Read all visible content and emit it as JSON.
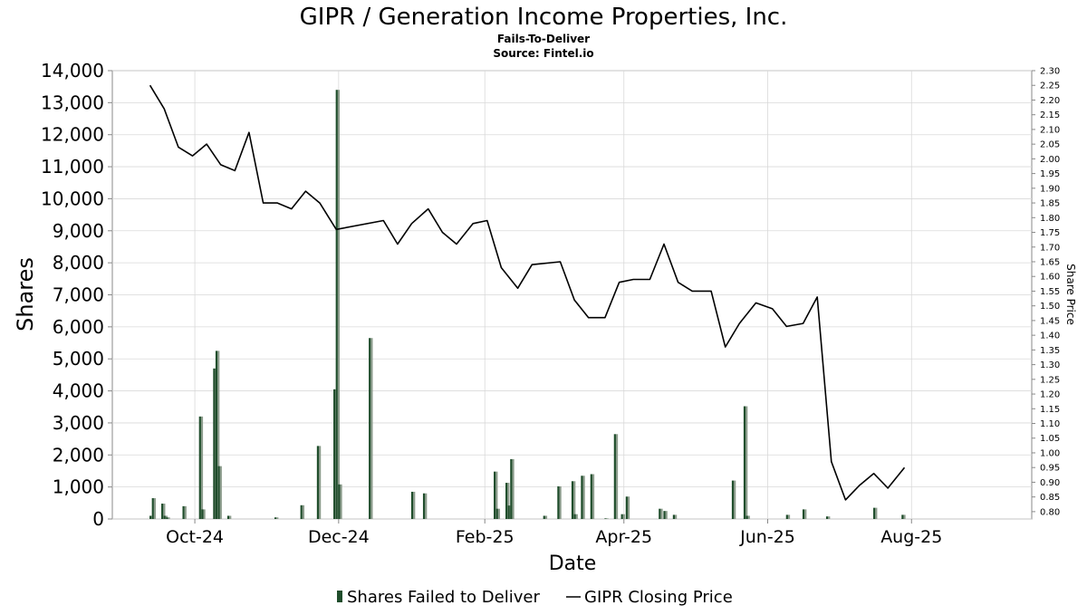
{
  "title": "GIPR / Generation Income Properties, Inc.",
  "subtitle": "Fails-To-Deliver",
  "source": "Source: Fintel.io",
  "colors": {
    "fail_bar": "#1f4d2b",
    "fail_bar_shadow": "#8c9c8c",
    "price_line": "#000000",
    "grid": "#d9d9d9",
    "axis": "#888888"
  },
  "chart_data": {
    "type": "bar",
    "xlabel": "Date",
    "ylabel": "Shares",
    "y2label": "Share Price",
    "ylim": [
      0,
      14000
    ],
    "y2lim": [
      0.775,
      2.3
    ],
    "xlim": [
      "2024-08-27",
      "2025-09-21"
    ],
    "yticks": [
      "0",
      "1,000",
      "2,000",
      "3,000",
      "4,000",
      "5,000",
      "6,000",
      "7,000",
      "8,000",
      "9,000",
      "10,000",
      "11,000",
      "12,000",
      "13,000",
      "14,000"
    ],
    "y2ticks": [
      "0.80",
      "0.85",
      "0.90",
      "0.95",
      "1.00",
      "1.05",
      "1.10",
      "1.15",
      "1.20",
      "1.25",
      "1.30",
      "1.35",
      "1.40",
      "1.45",
      "1.50",
      "1.55",
      "1.60",
      "1.65",
      "1.70",
      "1.75",
      "1.80",
      "1.85",
      "1.90",
      "1.95",
      "2.00",
      "2.05",
      "2.10",
      "2.15",
      "2.20",
      "2.25",
      "2.30"
    ],
    "xticks": [
      {
        "date": "2024-10-01",
        "label": "Oct-24"
      },
      {
        "date": "2024-12-01",
        "label": "Dec-24"
      },
      {
        "date": "2025-02-01",
        "label": "Feb-25"
      },
      {
        "date": "2025-04-01",
        "label": "Apr-25"
      },
      {
        "date": "2025-06-01",
        "label": "Jun-25"
      },
      {
        "date": "2025-08-01",
        "label": "Aug-25"
      }
    ],
    "grid": true,
    "legend_position": "bottom",
    "series": [
      {
        "name": "Shares Failed to Deliver",
        "type": "bar",
        "points": [
          {
            "date": "2024-09-12",
            "value": 100
          },
          {
            "date": "2024-09-13",
            "value": 650
          },
          {
            "date": "2024-09-17",
            "value": 480
          },
          {
            "date": "2024-09-18",
            "value": 100
          },
          {
            "date": "2024-09-19",
            "value": 50
          },
          {
            "date": "2024-09-26",
            "value": 400
          },
          {
            "date": "2024-10-03",
            "value": 3200
          },
          {
            "date": "2024-10-04",
            "value": 300
          },
          {
            "date": "2024-10-09",
            "value": 4700
          },
          {
            "date": "2024-10-10",
            "value": 5250
          },
          {
            "date": "2024-10-11",
            "value": 1650
          },
          {
            "date": "2024-10-15",
            "value": 100
          },
          {
            "date": "2024-11-04",
            "value": 50
          },
          {
            "date": "2024-11-15",
            "value": 430
          },
          {
            "date": "2024-11-22",
            "value": 2280
          },
          {
            "date": "2024-11-29",
            "value": 4050
          },
          {
            "date": "2024-11-30",
            "value": 13400
          },
          {
            "date": "2024-12-01",
            "value": 1080
          },
          {
            "date": "2024-12-14",
            "value": 5650
          },
          {
            "date": "2025-01-01",
            "value": 850
          },
          {
            "date": "2025-01-06",
            "value": 800
          },
          {
            "date": "2025-02-05",
            "value": 1480
          },
          {
            "date": "2025-02-06",
            "value": 320
          },
          {
            "date": "2025-02-10",
            "value": 1130
          },
          {
            "date": "2025-02-11",
            "value": 420
          },
          {
            "date": "2025-02-12",
            "value": 1870
          },
          {
            "date": "2025-02-26",
            "value": 100
          },
          {
            "date": "2025-03-04",
            "value": 1020
          },
          {
            "date": "2025-03-10",
            "value": 1180
          },
          {
            "date": "2025-03-11",
            "value": 150
          },
          {
            "date": "2025-03-14",
            "value": 1350
          },
          {
            "date": "2025-03-18",
            "value": 1400
          },
          {
            "date": "2025-03-24",
            "value": 20
          },
          {
            "date": "2025-03-28",
            "value": 2650
          },
          {
            "date": "2025-03-31",
            "value": 150
          },
          {
            "date": "2025-04-02",
            "value": 700
          },
          {
            "date": "2025-04-16",
            "value": 320
          },
          {
            "date": "2025-04-18",
            "value": 250
          },
          {
            "date": "2025-04-22",
            "value": 130
          },
          {
            "date": "2025-05-17",
            "value": 1200
          },
          {
            "date": "2025-05-22",
            "value": 3520
          },
          {
            "date": "2025-05-23",
            "value": 100
          },
          {
            "date": "2025-06-09",
            "value": 130
          },
          {
            "date": "2025-06-16",
            "value": 300
          },
          {
            "date": "2025-06-26",
            "value": 80
          },
          {
            "date": "2025-07-16",
            "value": 350
          },
          {
            "date": "2025-07-28",
            "value": 130
          }
        ]
      },
      {
        "name": "GIPR Closing Price",
        "type": "line",
        "points": [
          {
            "date": "2024-09-12",
            "value": 2.25
          },
          {
            "date": "2024-09-18",
            "value": 2.17
          },
          {
            "date": "2024-09-24",
            "value": 2.04
          },
          {
            "date": "2024-09-30",
            "value": 2.01
          },
          {
            "date": "2024-10-06",
            "value": 2.05
          },
          {
            "date": "2024-10-12",
            "value": 1.98
          },
          {
            "date": "2024-10-18",
            "value": 1.96
          },
          {
            "date": "2024-10-24",
            "value": 2.09
          },
          {
            "date": "2024-10-30",
            "value": 1.85
          },
          {
            "date": "2024-11-05",
            "value": 1.85
          },
          {
            "date": "2024-11-11",
            "value": 1.83
          },
          {
            "date": "2024-11-17",
            "value": 1.89
          },
          {
            "date": "2024-11-23",
            "value": 1.85
          },
          {
            "date": "2024-11-30",
            "value": 1.76
          },
          {
            "date": "2024-12-20",
            "value": 1.79
          },
          {
            "date": "2024-12-26",
            "value": 1.71
          },
          {
            "date": "2025-01-01",
            "value": 1.78
          },
          {
            "date": "2025-01-08",
            "value": 1.83
          },
          {
            "date": "2025-01-14",
            "value": 1.75
          },
          {
            "date": "2025-01-20",
            "value": 1.71
          },
          {
            "date": "2025-01-27",
            "value": 1.78
          },
          {
            "date": "2025-02-02",
            "value": 1.79
          },
          {
            "date": "2025-02-08",
            "value": 1.63
          },
          {
            "date": "2025-02-15",
            "value": 1.56
          },
          {
            "date": "2025-02-21",
            "value": 1.64
          },
          {
            "date": "2025-03-05",
            "value": 1.65
          },
          {
            "date": "2025-03-11",
            "value": 1.52
          },
          {
            "date": "2025-03-17",
            "value": 1.46
          },
          {
            "date": "2025-03-24",
            "value": 1.46
          },
          {
            "date": "2025-03-30",
            "value": 1.58
          },
          {
            "date": "2025-04-05",
            "value": 1.59
          },
          {
            "date": "2025-04-12",
            "value": 1.59
          },
          {
            "date": "2025-04-18",
            "value": 1.71
          },
          {
            "date": "2025-04-24",
            "value": 1.58
          },
          {
            "date": "2025-04-30",
            "value": 1.55
          },
          {
            "date": "2025-05-08",
            "value": 1.55
          },
          {
            "date": "2025-05-14",
            "value": 1.36
          },
          {
            "date": "2025-05-20",
            "value": 1.44
          },
          {
            "date": "2025-05-27",
            "value": 1.51
          },
          {
            "date": "2025-06-03",
            "value": 1.49
          },
          {
            "date": "2025-06-09",
            "value": 1.43
          },
          {
            "date": "2025-06-16",
            "value": 1.44
          },
          {
            "date": "2025-06-22",
            "value": 1.53
          },
          {
            "date": "2025-06-28",
            "value": 0.97
          },
          {
            "date": "2025-07-04",
            "value": 0.84
          },
          {
            "date": "2025-07-10",
            "value": 0.89
          },
          {
            "date": "2025-07-16",
            "value": 0.93
          },
          {
            "date": "2025-07-22",
            "value": 0.88
          },
          {
            "date": "2025-07-29",
            "value": 0.95
          }
        ]
      }
    ]
  }
}
